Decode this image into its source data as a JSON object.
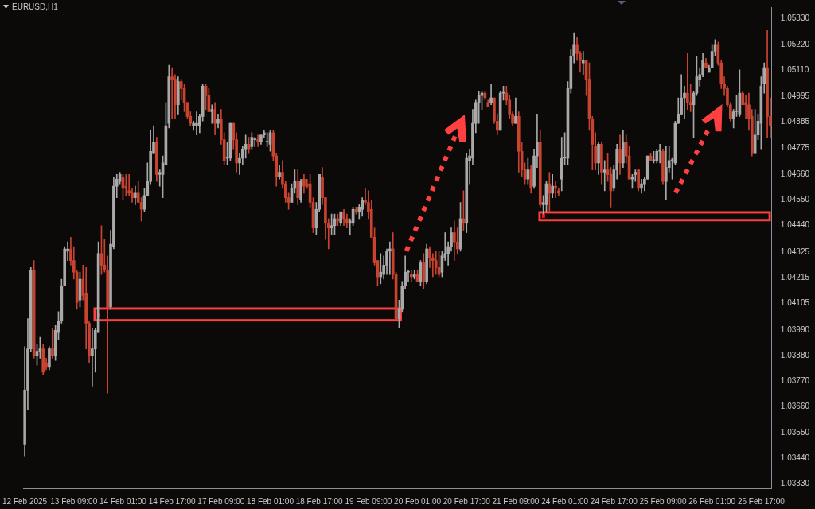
{
  "chart_data": {
    "type": "candlestick",
    "title": "EURUSD,H1",
    "categories": [
      "12 Feb 2025",
      null,
      null,
      null,
      null,
      null,
      null,
      null,
      null,
      null,
      null,
      null,
      null,
      null,
      null,
      null,
      "13 Feb 09:00",
      null,
      null,
      null,
      null,
      null,
      null,
      null,
      null,
      null,
      null,
      null,
      null,
      null,
      null,
      null,
      "14 Feb 01:00",
      null,
      null,
      null,
      null,
      null,
      null,
      null,
      null,
      null,
      null,
      null,
      null,
      null,
      null,
      null,
      "14 Feb 17:00",
      null,
      null,
      null,
      null,
      null,
      null,
      null,
      null,
      null,
      null,
      null,
      null,
      null,
      null,
      null,
      "17 Feb 09:00",
      null,
      null,
      null,
      null,
      null,
      null,
      null,
      null,
      null,
      null,
      null,
      null,
      null,
      null,
      null,
      "18 Feb 01:00",
      null,
      null,
      null,
      null,
      null,
      null,
      null,
      null,
      null,
      null,
      null,
      null,
      null,
      null,
      null,
      "18 Feb 17:00",
      null,
      null,
      null,
      null,
      null,
      null,
      null,
      null,
      null,
      null,
      null,
      null,
      null,
      null,
      null,
      "19 Feb 09:00",
      null,
      null,
      null,
      null,
      null,
      null,
      null,
      null,
      null,
      null,
      null,
      null,
      null,
      null,
      null,
      "20 Feb 01:00",
      null,
      null,
      null,
      null,
      null,
      null,
      null,
      null,
      null,
      null,
      null,
      null,
      null,
      null,
      null,
      "20 Feb 17:00",
      null,
      null,
      null,
      null,
      null,
      null,
      null,
      null,
      null,
      null,
      null,
      null,
      null,
      null,
      null,
      "21 Feb 09:00",
      null,
      null,
      null,
      null,
      null,
      null,
      null,
      null,
      null,
      null,
      null,
      null,
      null,
      null,
      null,
      "24 Feb 01:00",
      null,
      null,
      null,
      null,
      null,
      null,
      null,
      null,
      null,
      null,
      null,
      null,
      null,
      null,
      null,
      "24 Feb 17:00",
      null,
      null,
      null,
      null,
      null,
      null,
      null,
      null,
      null,
      null,
      null,
      null,
      null,
      null,
      null,
      "25 Feb 09:00",
      null,
      null,
      null,
      null,
      null,
      null,
      null,
      null,
      null,
      null,
      null,
      null,
      null,
      null,
      null,
      "26 Feb 01:00",
      null,
      null,
      null,
      null,
      null,
      null,
      null,
      null,
      null,
      null,
      null,
      null,
      null,
      null,
      null,
      "26 Feb 17:00",
      null,
      null,
      null
    ],
    "ohlc": [
      [
        1.035,
        1.0392,
        1.0345,
        1.0373
      ],
      [
        1.0373,
        1.0404,
        1.0365,
        1.0391
      ],
      [
        1.0391,
        1.0426,
        1.039,
        1.0425
      ],
      [
        1.0425,
        1.0429,
        1.0387,
        1.0388
      ],
      [
        1.0388,
        1.0393,
        1.0384,
        1.039
      ],
      [
        1.039,
        1.0396,
        1.0387,
        1.0391
      ],
      [
        1.0391,
        1.0393,
        1.038,
        1.0381
      ],
      [
        1.0385,
        1.0387,
        1.0382,
        1.0383
      ],
      [
        1.0383,
        1.0392,
        1.0382,
        1.0391
      ],
      [
        1.0391,
        1.04,
        1.0387,
        1.0388
      ],
      [
        1.0388,
        1.0401,
        1.0386,
        1.0399
      ],
      [
        1.0398,
        1.0407,
        1.0395,
        1.0403
      ],
      [
        1.0403,
        1.0421,
        1.0402,
        1.0418
      ],
      [
        1.0418,
        1.0435,
        1.0418,
        1.0434
      ],
      [
        1.0433,
        1.0437,
        1.0429,
        1.0434
      ],
      [
        1.0434,
        1.0439,
        1.0427,
        1.0429
      ],
      [
        1.0429,
        1.0435,
        1.0421,
        1.0424
      ],
      [
        1.0424,
        1.0425,
        1.0408,
        1.0411
      ],
      [
        1.0412,
        1.0424,
        1.0409,
        1.0421
      ],
      [
        1.0421,
        1.0427,
        1.0412,
        1.0414
      ],
      [
        1.0415,
        1.0426,
        1.0391,
        1.0402
      ],
      [
        1.0402,
        1.0403,
        1.0385,
        1.0388
      ],
      [
        1.0388,
        1.04,
        1.0375,
        1.0391
      ],
      [
        1.0391,
        1.04,
        1.0381,
        1.0399
      ],
      [
        1.0398,
        1.0437,
        1.0398,
        1.0432
      ],
      [
        1.0432,
        1.0444,
        1.0423,
        1.0427
      ],
      [
        1.0427,
        1.0438,
        1.0424,
        1.0425
      ],
      [
        1.0425,
        1.0431,
        1.0372,
        1.0408
      ],
      [
        1.0409,
        1.0442,
        1.0408,
        1.0436
      ],
      [
        1.0435,
        1.0465,
        1.0434,
        1.0461
      ],
      [
        1.0461,
        1.0466,
        1.0456,
        1.0464
      ],
      [
        1.0463,
        1.0467,
        1.0462,
        1.0466
      ],
      [
        1.0465,
        1.0466,
        1.0455,
        1.046
      ],
      [
        1.0461,
        1.0466,
        1.0457,
        1.046
      ],
      [
        1.0459,
        1.0466,
        1.0457,
        1.0458
      ],
      [
        1.0458,
        1.046,
        1.0454,
        1.0456
      ],
      [
        1.0456,
        1.0461,
        1.0453,
        1.0458
      ],
      [
        1.0458,
        1.0463,
        1.0454,
        1.0454
      ],
      [
        1.0454,
        1.0456,
        1.0446,
        1.0451
      ],
      [
        1.0451,
        1.046,
        1.045,
        1.0457
      ],
      [
        1.0457,
        1.0471,
        1.0457,
        1.0463
      ],
      [
        1.0463,
        1.0485,
        1.0462,
        1.0476
      ],
      [
        1.0475,
        1.0487,
        1.0475,
        1.048
      ],
      [
        1.048,
        1.0482,
        1.0463,
        1.0466
      ],
      [
        1.0466,
        1.0468,
        1.0461,
        1.0467
      ],
      [
        1.0466,
        1.0474,
        1.0456,
        1.0471
      ],
      [
        1.047,
        1.0497,
        1.047,
        1.0487
      ],
      [
        1.0488,
        1.0513,
        1.0486,
        1.0508
      ],
      [
        1.0508,
        1.0512,
        1.049,
        1.0507
      ],
      [
        1.0507,
        1.0509,
        1.049,
        1.0496
      ],
      [
        1.0496,
        1.0508,
        1.0492,
        1.0506
      ],
      [
        1.0506,
        1.0507,
        1.0498,
        1.0503
      ],
      [
        1.0503,
        1.0505,
        1.0493,
        1.0497
      ],
      [
        1.0497,
        1.0497,
        1.049,
        1.0491
      ],
      [
        1.0491,
        1.0493,
        1.0487,
        1.0488
      ],
      [
        1.0487,
        1.0489,
        1.0485,
        1.0488
      ],
      [
        1.0487,
        1.0493,
        1.0483,
        1.0488
      ],
      [
        1.0487,
        1.0492,
        1.0484,
        1.0491
      ],
      [
        1.0491,
        1.0505,
        1.0489,
        1.0504
      ],
      [
        1.0504,
        1.0505,
        1.0494,
        1.05
      ],
      [
        1.05,
        1.0503,
        1.0493,
        1.0493
      ],
      [
        1.0493,
        1.0496,
        1.0488,
        1.0494
      ],
      [
        1.0494,
        1.0497,
        1.0483,
        1.0488
      ],
      [
        1.0488,
        1.0492,
        1.0486,
        1.049
      ],
      [
        1.049,
        1.0494,
        1.0479,
        1.0481
      ],
      [
        1.0481,
        1.0484,
        1.047,
        1.0472
      ],
      [
        1.0473,
        1.048,
        1.047,
        1.0473
      ],
      [
        1.0473,
        1.0488,
        1.0472,
        1.0488
      ],
      [
        1.0488,
        1.0488,
        1.0477,
        1.0481
      ],
      [
        1.0481,
        1.0484,
        1.0467,
        1.0471
      ],
      [
        1.0471,
        1.0475,
        1.0466,
        1.0473
      ],
      [
        1.0473,
        1.0478,
        1.047,
        1.0477
      ],
      [
        1.0477,
        1.0483,
        1.0473,
        1.0479
      ],
      [
        1.0479,
        1.0482,
        1.0475,
        1.0477
      ],
      [
        1.0478,
        1.0484,
        1.0477,
        1.0482
      ],
      [
        1.0481,
        1.0482,
        1.0478,
        1.0481
      ],
      [
        1.0481,
        1.0483,
        1.0478,
        1.048
      ],
      [
        1.048,
        1.0483,
        1.0479,
        1.0483
      ],
      [
        1.0483,
        1.0485,
        1.0482,
        1.0484
      ],
      [
        1.048,
        1.0484,
        1.0478,
        1.048
      ],
      [
        1.0479,
        1.0485,
        1.0476,
        1.0484
      ],
      [
        1.0484,
        1.0485,
        1.0472,
        1.0474
      ],
      [
        1.0474,
        1.0475,
        1.0461,
        1.0465
      ],
      [
        1.0465,
        1.047,
        1.0464,
        1.0467
      ],
      [
        1.0467,
        1.0472,
        1.046,
        1.0462
      ],
      [
        1.0462,
        1.0463,
        1.0454,
        1.0456
      ],
      [
        1.0456,
        1.0458,
        1.0451,
        1.0454
      ],
      [
        1.0454,
        1.0462,
        1.0454,
        1.046
      ],
      [
        1.046,
        1.0468,
        1.0458,
        1.0463
      ],
      [
        1.0463,
        1.0468,
        1.0453,
        1.0456
      ],
      [
        1.0455,
        1.0464,
        1.0454,
        1.0463
      ],
      [
        1.0464,
        1.0466,
        1.0458,
        1.0461
      ],
      [
        1.0462,
        1.0464,
        1.046,
        1.0461
      ],
      [
        1.0462,
        1.0466,
        1.0452,
        1.0454
      ],
      [
        1.0454,
        1.0456,
        1.0441,
        1.0443
      ],
      [
        1.0443,
        1.0454,
        1.044,
        1.0451
      ],
      [
        1.0451,
        1.0466,
        1.045,
        1.0466
      ],
      [
        1.0465,
        1.0469,
        1.0453,
        1.0456
      ],
      [
        1.0456,
        1.0456,
        1.0438,
        1.0445
      ],
      [
        1.0445,
        1.0447,
        1.0434,
        1.0443
      ],
      [
        1.0443,
        1.0449,
        1.044,
        1.0444
      ],
      [
        1.0444,
        1.0449,
        1.044,
        1.0447
      ],
      [
        1.0447,
        1.0449,
        1.0444,
        1.0446
      ],
      [
        1.0445,
        1.045,
        1.0444,
        1.045
      ],
      [
        1.045,
        1.0451,
        1.0444,
        1.0447
      ],
      [
        1.0447,
        1.0449,
        1.0443,
        1.0445
      ],
      [
        1.0445,
        1.0447,
        1.044,
        1.0446
      ],
      [
        1.0445,
        1.0452,
        1.0444,
        1.0451
      ],
      [
        1.0451,
        1.0452,
        1.0449,
        1.045
      ],
      [
        1.045,
        1.0453,
        1.0447,
        1.0452
      ],
      [
        1.0451,
        1.0456,
        1.0448,
        1.0455
      ],
      [
        1.0455,
        1.046,
        1.0453,
        1.0454
      ],
      [
        1.0454,
        1.0459,
        1.0447,
        1.045
      ],
      [
        1.0451,
        1.0455,
        1.0439,
        1.0439
      ],
      [
        1.0439,
        1.0443,
        1.0427,
        1.0428
      ],
      [
        1.0429,
        1.0429,
        1.0418,
        1.0422
      ],
      [
        1.0422,
        1.0432,
        1.0419,
        1.0424
      ],
      [
        1.0423,
        1.0431,
        1.0421,
        1.0427
      ],
      [
        1.0427,
        1.0434,
        1.0423,
        1.0433
      ],
      [
        1.0433,
        1.0437,
        1.0423,
        1.0434
      ],
      [
        1.0434,
        1.0441,
        1.0421,
        1.0423
      ],
      [
        1.0423,
        1.0424,
        1.0404,
        1.0404
      ],
      [
        1.0404,
        1.0412,
        1.04,
        1.0408
      ],
      [
        1.0408,
        1.042,
        1.0407,
        1.0418
      ],
      [
        1.0418,
        1.0431,
        1.0417,
        1.0424
      ],
      [
        1.0424,
        1.0425,
        1.042,
        1.0424
      ],
      [
        1.0423,
        1.0425,
        1.042,
        1.0422
      ],
      [
        1.0422,
        1.0425,
        1.0421,
        1.0423
      ],
      [
        1.0423,
        1.0425,
        1.042,
        1.042
      ],
      [
        1.042,
        1.0429,
        1.0418,
        1.0428
      ],
      [
        1.0428,
        1.0432,
        1.0417,
        1.042
      ],
      [
        1.042,
        1.0436,
        1.0419,
        1.0434
      ],
      [
        1.0434,
        1.0435,
        1.0426,
        1.043
      ],
      [
        1.043,
        1.0432,
        1.0422,
        1.0429
      ],
      [
        1.0429,
        1.0433,
        1.0423,
        1.0426
      ],
      [
        1.0426,
        1.0433,
        1.0422,
        1.0423
      ],
      [
        1.0424,
        1.0433,
        1.0422,
        1.0431
      ],
      [
        1.043,
        1.0441,
        1.0429,
        1.0432
      ],
      [
        1.0432,
        1.0437,
        1.0427,
        1.0435
      ],
      [
        1.0435,
        1.0443,
        1.0433,
        1.0441
      ],
      [
        1.0441,
        1.0446,
        1.0429,
        1.0437
      ],
      [
        1.0437,
        1.0443,
        1.0432,
        1.0434
      ],
      [
        1.0434,
        1.0454,
        1.0433,
        1.0447
      ],
      [
        1.0447,
        1.0459,
        1.0442,
        1.0445
      ],
      [
        1.0445,
        1.0475,
        1.0441,
        1.0473
      ],
      [
        1.0472,
        1.0477,
        1.0462,
        1.0474
      ],
      [
        1.0473,
        1.0494,
        1.047,
        1.0488
      ],
      [
        1.0488,
        1.0498,
        1.0484,
        1.0497
      ],
      [
        1.0497,
        1.0502,
        1.0488,
        1.05
      ],
      [
        1.05,
        1.0502,
        1.0494,
        1.0501
      ],
      [
        1.0501,
        1.0502,
        1.0498,
        1.0499
      ],
      [
        1.0497,
        1.0498,
        1.0495,
        1.0495
      ],
      [
        1.0497,
        1.0505,
        1.0496,
        1.0499
      ],
      [
        1.0499,
        1.0499,
        1.0488,
        1.0489
      ],
      [
        1.0489,
        1.0492,
        1.0483,
        1.0485
      ],
      [
        1.0485,
        1.0502,
        1.0485,
        1.0501
      ],
      [
        1.0501,
        1.0504,
        1.0498,
        1.0501
      ],
      [
        1.0501,
        1.0504,
        1.0496,
        1.0498
      ],
      [
        1.0498,
        1.05,
        1.049,
        1.0492
      ],
      [
        1.0492,
        1.0493,
        1.0487,
        1.0488
      ],
      [
        1.0488,
        1.0499,
        1.0488,
        1.0491
      ],
      [
        1.0491,
        1.0493,
        1.0467,
        1.0476
      ],
      [
        1.0476,
        1.048,
        1.0465,
        1.0468
      ],
      [
        1.0468,
        1.0471,
        1.0462,
        1.0464
      ],
      [
        1.0464,
        1.0473,
        1.0462,
        1.0468
      ],
      [
        1.0468,
        1.047,
        1.0458,
        1.046
      ],
      [
        1.0461,
        1.0477,
        1.046,
        1.0474
      ],
      [
        1.0474,
        1.0492,
        1.0469,
        1.048
      ],
      [
        1.048,
        1.0485,
        1.0452,
        1.0453
      ],
      [
        1.0453,
        1.0457,
        1.0449,
        1.0454
      ],
      [
        1.0453,
        1.0463,
        1.045,
        1.0462
      ],
      [
        1.0462,
        1.0467,
        1.045,
        1.0458
      ],
      [
        1.0458,
        1.0466,
        1.0456,
        1.0461
      ],
      [
        1.0461,
        1.0463,
        1.0456,
        1.046
      ],
      [
        1.0459,
        1.046,
        1.0457,
        1.0458
      ],
      [
        1.0464,
        1.0482,
        1.0459,
        1.0473
      ],
      [
        1.0473,
        1.0484,
        1.047,
        1.0473
      ],
      [
        1.0473,
        1.0506,
        1.047,
        1.0503
      ],
      [
        1.0503,
        1.052,
        1.0501,
        1.0517
      ],
      [
        1.0517,
        1.0527,
        1.0514,
        1.0522
      ],
      [
        1.0522,
        1.0525,
        1.0515,
        1.0518
      ],
      [
        1.0518,
        1.0519,
        1.051,
        1.0515
      ],
      [
        1.0514,
        1.0519,
        1.0509,
        1.0515
      ],
      [
        1.0515,
        1.0515,
        1.05,
        1.0507
      ],
      [
        1.0507,
        1.0514,
        1.0485,
        1.049
      ],
      [
        1.049,
        1.0491,
        1.0468,
        1.0479
      ],
      [
        1.0478,
        1.0484,
        1.0468,
        1.0471
      ],
      [
        1.0471,
        1.048,
        1.0466,
        1.0479
      ],
      [
        1.0479,
        1.048,
        1.0462,
        1.0467
      ],
      [
        1.0467,
        1.0472,
        1.0459,
        1.0468
      ],
      [
        1.0468,
        1.0475,
        1.0463,
        1.0466
      ],
      [
        1.0466,
        1.0469,
        1.0452,
        1.0459
      ],
      [
        1.046,
        1.047,
        1.0459,
        1.0468
      ],
      [
        1.0468,
        1.0479,
        1.0464,
        1.0477
      ],
      [
        1.0477,
        1.0483,
        1.0466,
        1.0471
      ],
      [
        1.0471,
        1.0485,
        1.0469,
        1.048
      ],
      [
        1.048,
        1.0483,
        1.0471,
        1.0474
      ],
      [
        1.0474,
        1.0478,
        1.0464,
        1.0464
      ],
      [
        1.0464,
        1.0466,
        1.046,
        1.0465
      ],
      [
        1.0466,
        1.0468,
        1.0463,
        1.0467
      ],
      [
        1.0468,
        1.0468,
        1.0459,
        1.046
      ],
      [
        1.046,
        1.0464,
        1.0458,
        1.0462
      ],
      [
        1.0462,
        1.0465,
        1.0459,
        1.0464
      ],
      [
        1.0464,
        1.0474,
        1.0464,
        1.0474
      ],
      [
        1.0474,
        1.0475,
        1.0472,
        1.0472
      ],
      [
        1.0472,
        1.0476,
        1.0471,
        1.0472
      ],
      [
        1.0472,
        1.0477,
        1.0471,
        1.0476
      ],
      [
        1.0476,
        1.0479,
        1.0471,
        1.0476
      ],
      [
        1.0476,
        1.0477,
        1.0462,
        1.0463
      ],
      [
        1.0463,
        1.0478,
        1.0455,
        1.0469
      ],
      [
        1.0469,
        1.0478,
        1.0467,
        1.0472
      ],
      [
        1.0472,
        1.0473,
        1.0464,
        1.0472
      ],
      [
        1.0471,
        1.0489,
        1.047,
        1.0488
      ],
      [
        1.0488,
        1.0499,
        1.0488,
        1.0492
      ],
      [
        1.0492,
        1.0509,
        1.0492,
        1.0499
      ],
      [
        1.0499,
        1.0504,
        1.049,
        1.0501
      ],
      [
        1.0501,
        1.0518,
        1.0494,
        1.0497
      ],
      [
        1.0497,
        1.0505,
        1.0493,
        1.0496
      ],
      [
        1.0496,
        1.0502,
        1.0482,
        1.0501
      ],
      [
        1.0501,
        1.0517,
        1.05,
        1.0508
      ],
      [
        1.0507,
        1.0512,
        1.0504,
        1.0509
      ],
      [
        1.0509,
        1.0518,
        1.0508,
        1.0515
      ],
      [
        1.0514,
        1.0516,
        1.0512,
        1.0512
      ],
      [
        1.051,
        1.0513,
        1.051,
        1.0512
      ],
      [
        1.0512,
        1.0522,
        1.0512,
        1.0519
      ],
      [
        1.0519,
        1.0524,
        1.0517,
        1.0522
      ],
      [
        1.0522,
        1.0523,
        1.0513,
        1.0514
      ],
      [
        1.0514,
        1.0515,
        1.0503,
        1.0505
      ],
      [
        1.0505,
        1.0508,
        1.05,
        1.0503
      ],
      [
        1.0503,
        1.0504,
        1.0495,
        1.0496
      ],
      [
        1.0496,
        1.0497,
        1.0489,
        1.049
      ],
      [
        1.049,
        1.0494,
        1.0486,
        1.0493
      ],
      [
        1.0493,
        1.05,
        1.0491,
        1.0493
      ],
      [
        1.0492,
        1.0511,
        1.0491,
        1.0501
      ],
      [
        1.0501,
        1.0502,
        1.0496,
        1.0496
      ],
      [
        1.0497,
        1.05,
        1.049,
        1.0496
      ],
      [
        1.0496,
        1.0501,
        1.0485,
        1.049
      ],
      [
        1.0491,
        1.0494,
        1.0474,
        1.0475
      ],
      [
        1.0475,
        1.0494,
        1.0475,
        1.0483
      ],
      [
        1.0483,
        1.0492,
        1.0481,
        1.0489
      ],
      [
        1.0488,
        1.0508,
        1.0477,
        1.0504
      ],
      [
        1.0505,
        1.0514,
        1.0501,
        1.0512
      ],
      [
        1.0512,
        1.0528,
        1.0482,
        1.0491
      ],
      [
        1.0491,
        1.0499,
        1.0482,
        1.0487
      ]
    ],
    "ylim": [
      1.0331,
      1.0538
    ],
    "yticks": [
      {
        "value": 1.0333,
        "label": "1.03330"
      },
      {
        "value": 1.0344,
        "label": "1.03440"
      },
      {
        "value": 1.0355,
        "label": "1.03550"
      },
      {
        "value": 1.0366,
        "label": "1.03660"
      },
      {
        "value": 1.0377,
        "label": "1.03770"
      },
      {
        "value": 1.0388,
        "label": "1.03880"
      },
      {
        "value": 1.0399,
        "label": "1.03990"
      },
      {
        "value": 1.04105,
        "label": "1.04105"
      },
      {
        "value": 1.04215,
        "label": "1.04215"
      },
      {
        "value": 1.04325,
        "label": "1.04325"
      },
      {
        "value": 1.0444,
        "label": "1.04440"
      },
      {
        "value": 1.0455,
        "label": "1.04550"
      },
      {
        "value": 1.0466,
        "label": "1.04660"
      },
      {
        "value": 1.04775,
        "label": "1.04775"
      },
      {
        "value": 1.04885,
        "label": "1.04885"
      },
      {
        "value": 1.04995,
        "label": "1.04995"
      },
      {
        "value": 1.0511,
        "label": "1.05110"
      },
      {
        "value": 1.0522,
        "label": "1.05220"
      },
      {
        "value": 1.0533,
        "label": "1.05330"
      }
    ]
  }
}
